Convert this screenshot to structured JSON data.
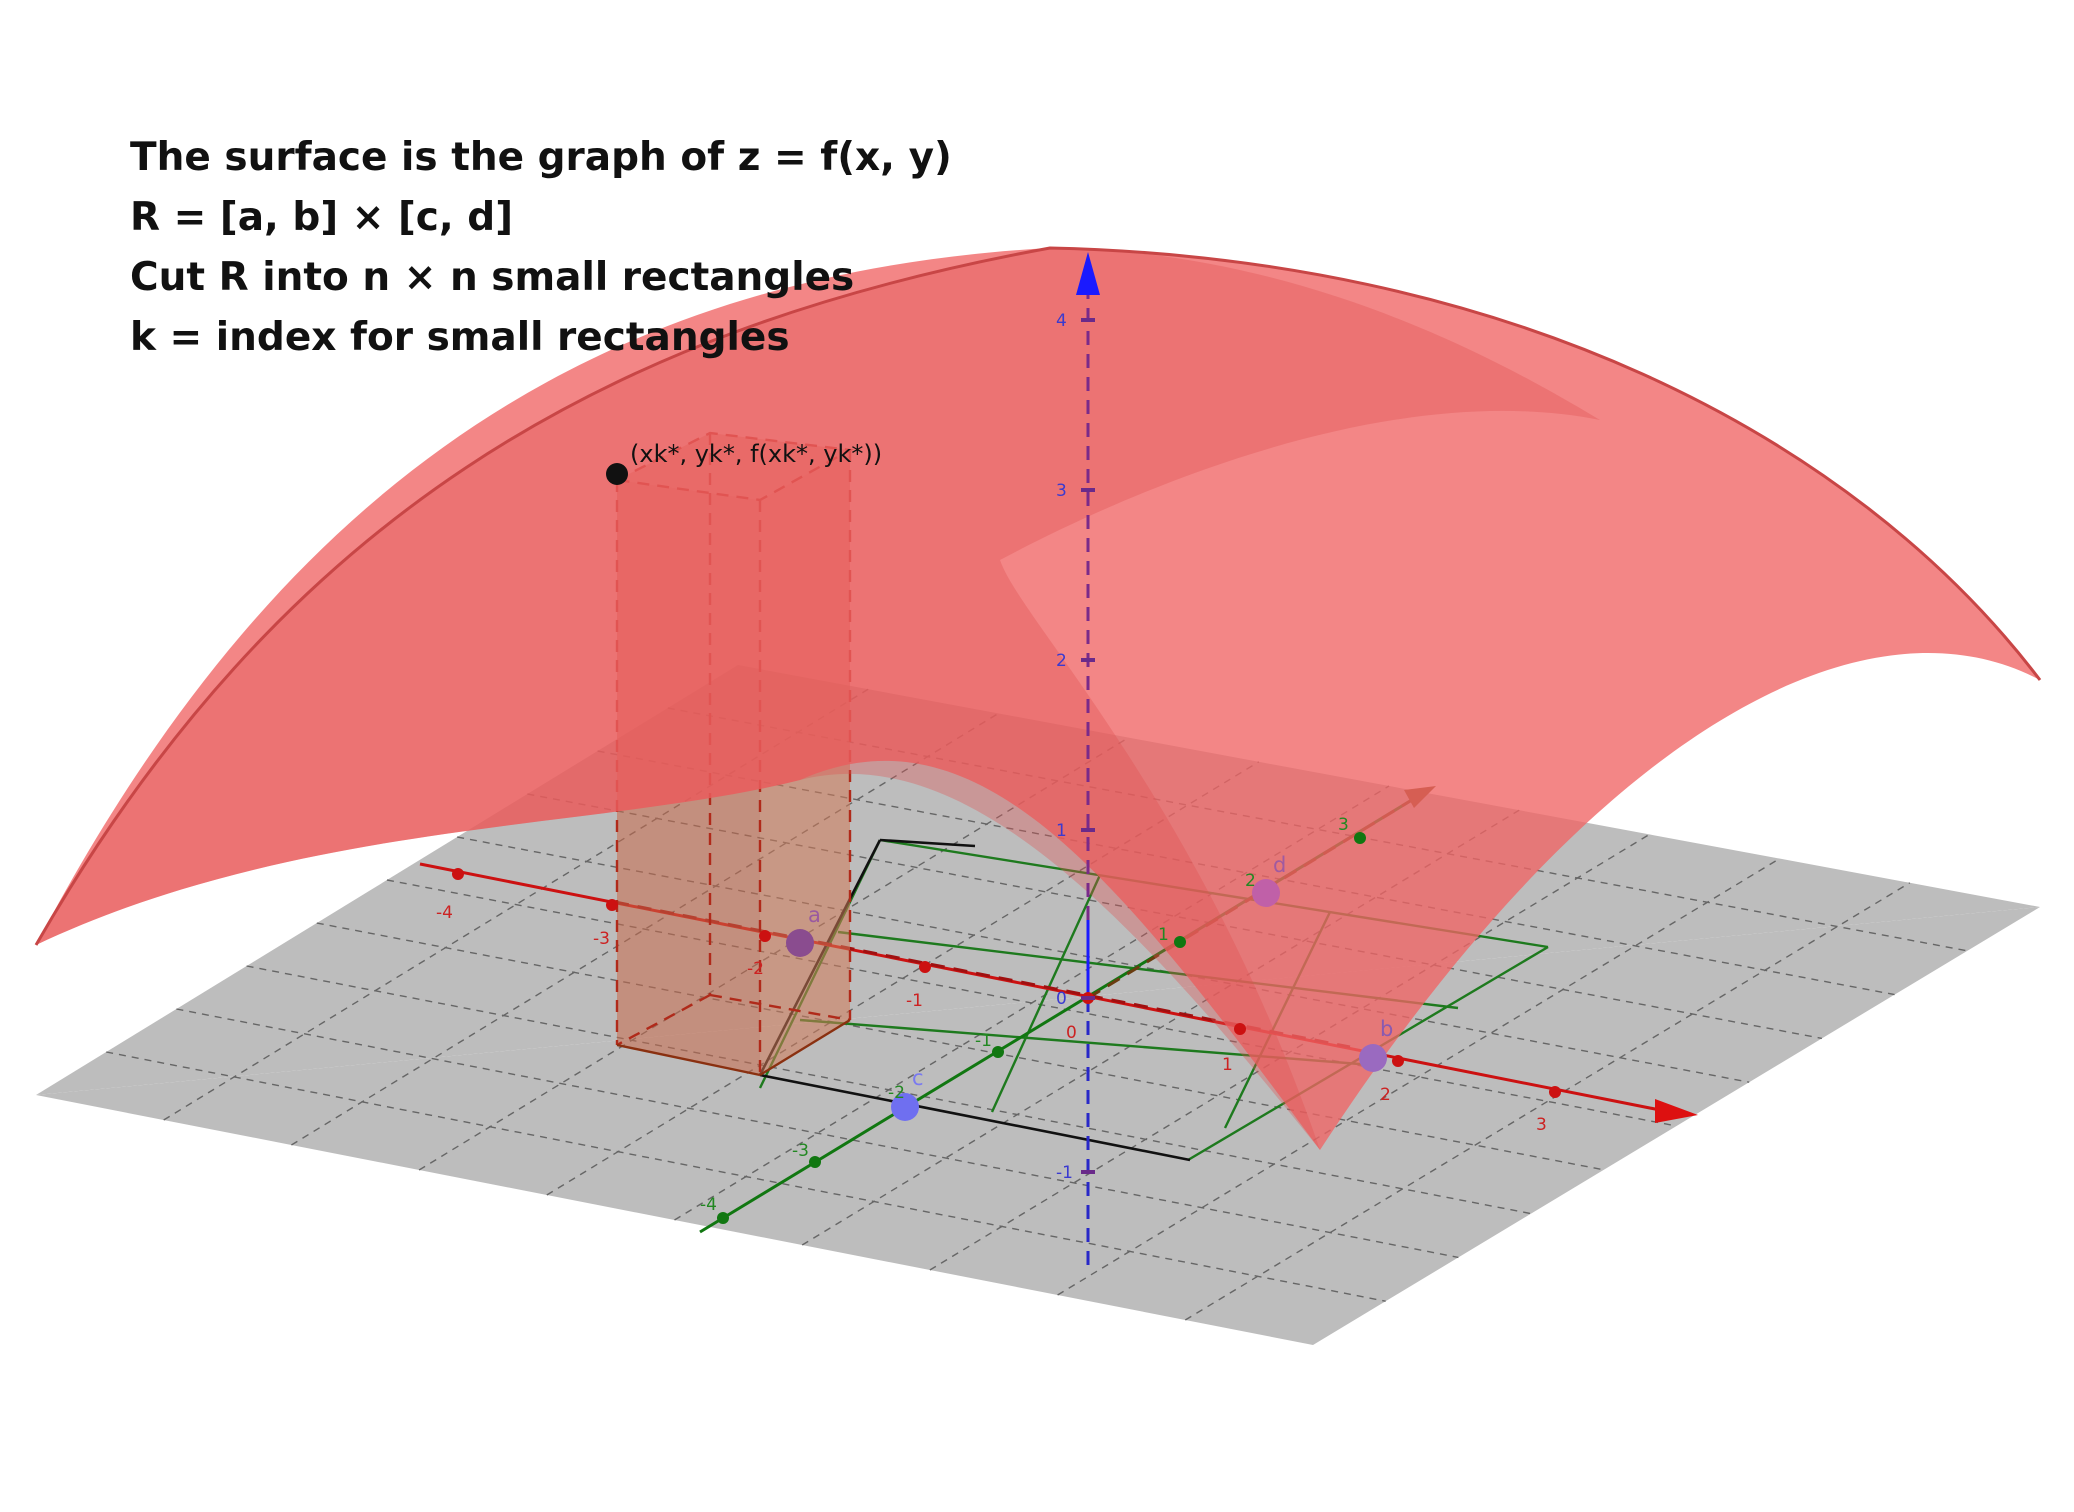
{
  "caption": {
    "line1": "The surface is the graph of z = f(x, y)",
    "line2": "R = [a, b] × [c, d]",
    "line3": "Cut R into n × n small rectangles",
    "line4": "k = index for small rectangles"
  },
  "sample_point_label": "(xk*, yk*, f(xk*, yk*))",
  "axes": {
    "x": {
      "color": "#cc1111",
      "ticks": [
        "-4",
        "-3",
        "-2",
        "-1",
        "0",
        "1",
        "2",
        "3"
      ]
    },
    "y": {
      "color": "#117711",
      "ticks": [
        "-4",
        "-3",
        "-2",
        "-1",
        "1",
        "2",
        "3"
      ]
    },
    "z": {
      "color": "#1a1aff",
      "ticks": [
        "4",
        "3",
        "2",
        "1",
        "0",
        "-1"
      ]
    }
  },
  "points": {
    "a": "a",
    "b": "b",
    "c": "c",
    "d": "d"
  },
  "colors": {
    "surface": "#f06464",
    "surface_edge": "#c84646",
    "plane": "#bdbdbd",
    "grid": "#555555",
    "region_grid": "#1e7a1e",
    "prism": "#c85a3c",
    "point_purple": "#8a4c8f",
    "point_blue": "#6f6ff0"
  }
}
